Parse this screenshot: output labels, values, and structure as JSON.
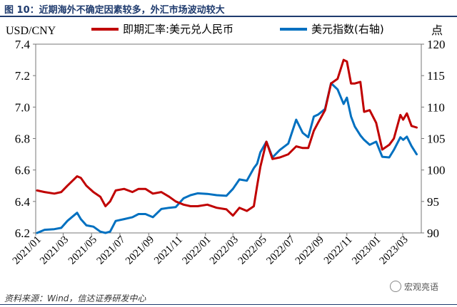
{
  "figure": {
    "title": "图 10：近期海外不确定因素较多，外汇市场波动较大",
    "source": "资料来源：Wind，信达证券研发中心",
    "watermark": "宏观亮语"
  },
  "chart_data": {
    "type": "line",
    "left_axis_unit": "USD/CNY",
    "right_axis_unit": "点",
    "x_tick_labels": [
      "2021/01",
      "2021/03",
      "2021/05",
      "2021/07",
      "2021/09",
      "2021/11",
      "2022/01",
      "2022/03",
      "2022/05",
      "2022/07",
      "2022/09",
      "2022/11",
      "2023/01",
      "2023/03"
    ],
    "x_range": [
      "2021-01-01",
      "2023-04-10"
    ],
    "y_left": {
      "range": [
        6.2,
        7.4
      ],
      "ticks": [
        "6.2",
        "6.4",
        "6.6",
        "6.8",
        "7.0",
        "7.2",
        "7.4"
      ]
    },
    "y_right": {
      "range": [
        90,
        120
      ],
      "ticks": [
        "90",
        "95",
        "100",
        "105",
        "110",
        "115",
        "120"
      ]
    },
    "legend_position": "top",
    "series": [
      {
        "name": "即期汇率:美元兑人民币",
        "axis": "left",
        "color": "#c00000",
        "points": [
          [
            "2021-01-04",
            6.47
          ],
          [
            "2021-01-20",
            6.46
          ],
          [
            "2021-02-10",
            6.45
          ],
          [
            "2021-02-25",
            6.46
          ],
          [
            "2021-03-10",
            6.5
          ],
          [
            "2021-03-31",
            6.56
          ],
          [
            "2021-04-08",
            6.55
          ],
          [
            "2021-04-20",
            6.5
          ],
          [
            "2021-05-05",
            6.46
          ],
          [
            "2021-05-20",
            6.43
          ],
          [
            "2021-05-31",
            6.37
          ],
          [
            "2021-06-10",
            6.4
          ],
          [
            "2021-06-22",
            6.47
          ],
          [
            "2021-07-10",
            6.48
          ],
          [
            "2021-07-28",
            6.46
          ],
          [
            "2021-08-10",
            6.48
          ],
          [
            "2021-08-25",
            6.48
          ],
          [
            "2021-09-10",
            6.45
          ],
          [
            "2021-09-28",
            6.46
          ],
          [
            "2021-10-15",
            6.43
          ],
          [
            "2021-10-29",
            6.4
          ],
          [
            "2021-11-15",
            6.38
          ],
          [
            "2021-11-30",
            6.37
          ],
          [
            "2021-12-15",
            6.37
          ],
          [
            "2022-01-05",
            6.38
          ],
          [
            "2022-01-25",
            6.36
          ],
          [
            "2022-02-15",
            6.35
          ],
          [
            "2022-03-01",
            6.31
          ],
          [
            "2022-03-15",
            6.36
          ],
          [
            "2022-03-31",
            6.34
          ],
          [
            "2022-04-15",
            6.37
          ],
          [
            "2022-04-22",
            6.5
          ],
          [
            "2022-04-29",
            6.62
          ],
          [
            "2022-05-12",
            6.78
          ],
          [
            "2022-05-25",
            6.67
          ],
          [
            "2022-06-10",
            6.68
          ],
          [
            "2022-06-28",
            6.7
          ],
          [
            "2022-07-15",
            6.75
          ],
          [
            "2022-07-29",
            6.74
          ],
          [
            "2022-08-10",
            6.74
          ],
          [
            "2022-08-22",
            6.85
          ],
          [
            "2022-08-31",
            6.9
          ],
          [
            "2022-09-15",
            6.98
          ],
          [
            "2022-09-28",
            7.15
          ],
          [
            "2022-10-12",
            7.18
          ],
          [
            "2022-10-25",
            7.3
          ],
          [
            "2022-11-01",
            7.29
          ],
          [
            "2022-11-10",
            7.15
          ],
          [
            "2022-11-18",
            7.15
          ],
          [
            "2022-11-30",
            7.16
          ],
          [
            "2022-12-08",
            6.97
          ],
          [
            "2022-12-20",
            6.98
          ],
          [
            "2023-01-03",
            6.9
          ],
          [
            "2023-01-16",
            6.73
          ],
          [
            "2023-01-31",
            6.76
          ],
          [
            "2023-02-10",
            6.8
          ],
          [
            "2023-02-24",
            6.95
          ],
          [
            "2023-03-02",
            6.92
          ],
          [
            "2023-03-10",
            6.96
          ],
          [
            "2023-03-20",
            6.88
          ],
          [
            "2023-03-31",
            6.87
          ]
        ]
      },
      {
        "name": "美元指数(右轴)",
        "axis": "right",
        "color": "#0070c0",
        "points": [
          [
            "2021-01-04",
            90.0
          ],
          [
            "2021-01-20",
            90.5
          ],
          [
            "2021-02-10",
            90.6
          ],
          [
            "2021-02-25",
            90.8
          ],
          [
            "2021-03-10",
            91.9
          ],
          [
            "2021-03-31",
            93.2
          ],
          [
            "2021-04-08",
            92.2
          ],
          [
            "2021-04-20",
            91.2
          ],
          [
            "2021-05-05",
            91.0
          ],
          [
            "2021-05-20",
            90.2
          ],
          [
            "2021-05-31",
            90.0
          ],
          [
            "2021-06-10",
            90.2
          ],
          [
            "2021-06-22",
            91.9
          ],
          [
            "2021-07-10",
            92.2
          ],
          [
            "2021-07-28",
            92.5
          ],
          [
            "2021-08-10",
            93.0
          ],
          [
            "2021-08-25",
            93.0
          ],
          [
            "2021-09-10",
            92.5
          ],
          [
            "2021-09-28",
            93.8
          ],
          [
            "2021-10-15",
            94.0
          ],
          [
            "2021-10-29",
            94.1
          ],
          [
            "2021-11-15",
            95.5
          ],
          [
            "2021-11-30",
            96.0
          ],
          [
            "2021-12-15",
            96.3
          ],
          [
            "2022-01-05",
            96.2
          ],
          [
            "2022-01-25",
            96.0
          ],
          [
            "2022-02-15",
            95.9
          ],
          [
            "2022-03-01",
            97.0
          ],
          [
            "2022-03-15",
            98.5
          ],
          [
            "2022-03-31",
            98.3
          ],
          [
            "2022-04-15",
            100.3
          ],
          [
            "2022-04-22",
            101.0
          ],
          [
            "2022-04-29",
            102.8
          ],
          [
            "2022-05-12",
            104.5
          ],
          [
            "2022-05-25",
            102.0
          ],
          [
            "2022-06-10",
            103.2
          ],
          [
            "2022-06-28",
            104.2
          ],
          [
            "2022-07-15",
            108.0
          ],
          [
            "2022-07-29",
            105.9
          ],
          [
            "2022-08-10",
            105.2
          ],
          [
            "2022-08-22",
            108.5
          ],
          [
            "2022-08-31",
            108.8
          ],
          [
            "2022-09-15",
            109.7
          ],
          [
            "2022-09-28",
            113.8
          ],
          [
            "2022-10-12",
            112.8
          ],
          [
            "2022-10-25",
            110.5
          ],
          [
            "2022-11-01",
            111.5
          ],
          [
            "2022-11-10",
            108.5
          ],
          [
            "2022-11-18",
            106.9
          ],
          [
            "2022-11-30",
            105.5
          ],
          [
            "2022-12-08",
            104.8
          ],
          [
            "2022-12-20",
            104.0
          ],
          [
            "2023-01-03",
            104.5
          ],
          [
            "2023-01-16",
            102.1
          ],
          [
            "2023-01-31",
            102.0
          ],
          [
            "2023-02-10",
            103.2
          ],
          [
            "2023-02-24",
            105.2
          ],
          [
            "2023-03-02",
            104.8
          ],
          [
            "2023-03-10",
            105.3
          ],
          [
            "2023-03-20",
            103.8
          ],
          [
            "2023-03-31",
            102.5
          ]
        ]
      }
    ]
  }
}
